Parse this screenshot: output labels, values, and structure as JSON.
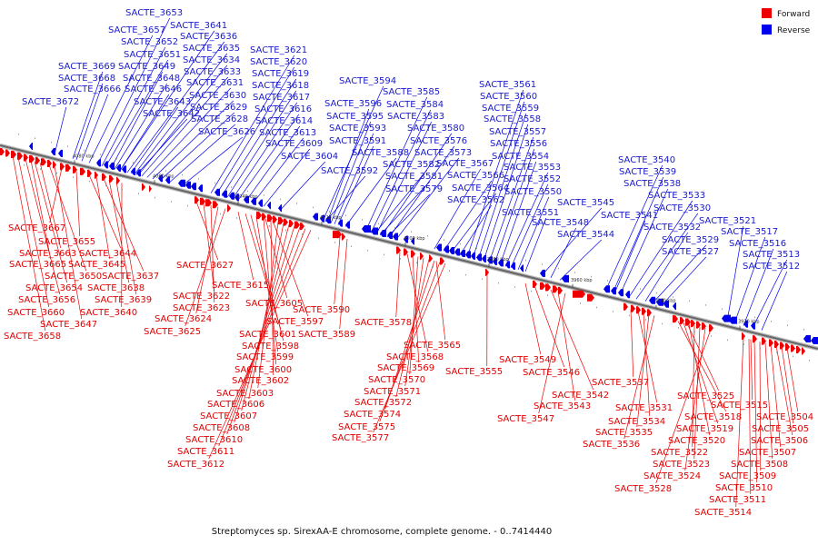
{
  "caption": "Streptomyces sp. SirexAA-E chromosome, complete genome. - 0..7414440",
  "legend": [
    {
      "label": "Forward",
      "color": "#ee0000"
    },
    {
      "label": "Reverse",
      "color": "#0000ee"
    }
  ],
  "colors": {
    "forward": "#ee0000",
    "reverse": "#0000ee",
    "forward_label": "#e00000",
    "reverse_label": "#1a1acc",
    "axis": "#888888"
  },
  "ticks": [
    "4080 kbp",
    "4060 kbp",
    "4040 kbp",
    "4020 kbp",
    "4000 kbp",
    "3980 kbp",
    "3960 kbp",
    "3940 kbp",
    "3920 kbp"
  ],
  "reverse_labels": [
    "SACTE_3653",
    "SACTE_3641",
    "SACTE_3657",
    "SACTE_3636",
    "SACTE_3652",
    "SACTE_3635",
    "SACTE_3651",
    "SACTE_3634",
    "SACTE_3669",
    "SACTE_3649",
    "SACTE_3633",
    "SACTE_3668",
    "SACTE_3648",
    "SACTE_3631",
    "SACTE_3666",
    "SACTE_3646",
    "SACTE_3630",
    "SACTE_3672",
    "SACTE_3643",
    "SACTE_3629",
    "SACTE_3642",
    "SACTE_3628",
    "SACTE_3626",
    "SACTE_3621",
    "SACTE_3620",
    "SACTE_3619",
    "SACTE_3618",
    "SACTE_3617",
    "SACTE_3616",
    "SACTE_3614",
    "SACTE_3613",
    "SACTE_3609",
    "SACTE_3604",
    "SACTE_3594",
    "SACTE_3585",
    "SACTE_3596",
    "SACTE_3584",
    "SACTE_3595",
    "SACTE_3583",
    "SACTE_3593",
    "SACTE_3580",
    "SACTE_3591",
    "SACTE_3576",
    "SACTE_3588",
    "SACTE_3573",
    "SACTE_3592",
    "SACTE_3582",
    "SACTE_3581",
    "SACTE_3579",
    "SACTE_3567",
    "SACTE_3566",
    "SACTE_3564",
    "SACTE_3562",
    "SACTE_3561",
    "SACTE_3560",
    "SACTE_3559",
    "SACTE_3558",
    "SACTE_3557",
    "SACTE_3556",
    "SACTE_3554",
    "SACTE_3553",
    "SACTE_3552",
    "SACTE_3550",
    "SACTE_3551",
    "SACTE_3545",
    "SACTE_3548",
    "SACTE_3544",
    "SACTE_3540",
    "SACTE_3539",
    "SACTE_3538",
    "SACTE_3533",
    "SACTE_3530",
    "SACTE_3541",
    "SACTE_3532",
    "SACTE_3529",
    "SACTE_3527",
    "SACTE_3521",
    "SACTE_3517",
    "SACTE_3516",
    "SACTE_3513",
    "SACTE_3512"
  ],
  "forward_labels": [
    "SACTE_3667",
    "SACTE_3655",
    "SACTE_3663",
    "SACTE_3644",
    "SACTE_3665",
    "SACTE_3645",
    "SACTE_3650",
    "SACTE_3637",
    "SACTE_3654",
    "SACTE_3638",
    "SACTE_3656",
    "SACTE_3639",
    "SACTE_3660",
    "SACTE_3640",
    "SACTE_3647",
    "SACTE_3658",
    "SACTE_3627",
    "SACTE_3615",
    "SACTE_3622",
    "SACTE_3623",
    "SACTE_3605",
    "SACTE_3624",
    "SACTE_3597",
    "SACTE_3625",
    "SACTE_3601",
    "SACTE_3598",
    "SACTE_3599",
    "SACTE_3600",
    "SACTE_3602",
    "SACTE_3603",
    "SACTE_3606",
    "SACTE_3607",
    "SACTE_3608",
    "SACTE_3610",
    "SACTE_3611",
    "SACTE_3612",
    "SACTE_3590",
    "SACTE_3589",
    "SACTE_3578",
    "SACTE_3565",
    "SACTE_3568",
    "SACTE_3569",
    "SACTE_3570",
    "SACTE_3571",
    "SACTE_3572",
    "SACTE_3574",
    "SACTE_3575",
    "SACTE_3577",
    "SACTE_3555",
    "SACTE_3549",
    "SACTE_3546",
    "SACTE_3542",
    "SACTE_3543",
    "SACTE_3547",
    "SACTE_3537",
    "SACTE_3531",
    "SACTE_3534",
    "SACTE_3535",
    "SACTE_3536",
    "SACTE_3525",
    "SACTE_3518",
    "SACTE_3519",
    "SACTE_3520",
    "SACTE_3522",
    "SACTE_3523",
    "SACTE_3524",
    "SACTE_3528",
    "SACTE_3515",
    "SACTE_3504",
    "SACTE_3505",
    "SACTE_3506",
    "SACTE_3507",
    "SACTE_3508",
    "SACTE_3509",
    "SACTE_3510",
    "SACTE_3511",
    "SACTE_3514"
  ]
}
